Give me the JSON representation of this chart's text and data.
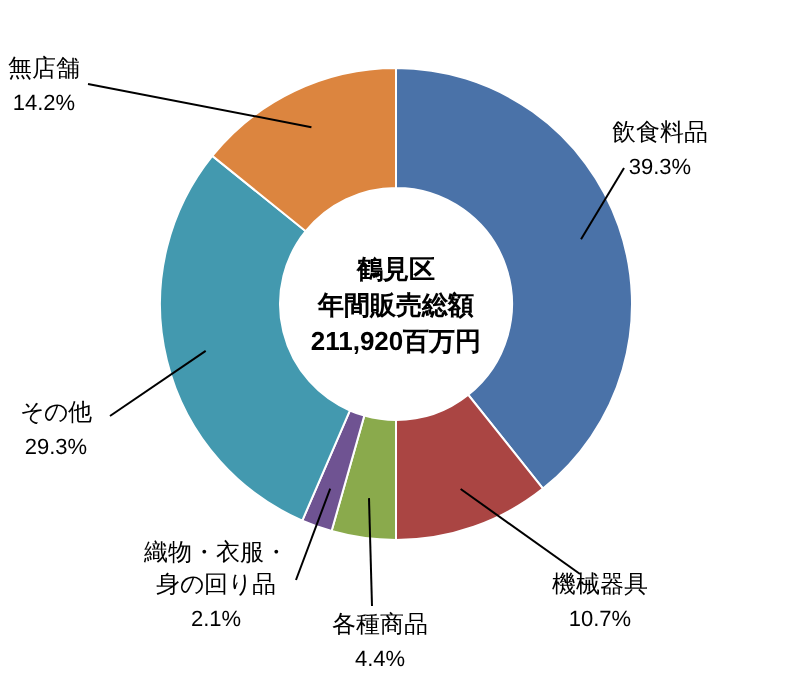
{
  "chart_data": {
    "type": "donut",
    "title": "鶴見区",
    "subtitle": "年間販売総額",
    "annotations": [
      "211,920百万円"
    ],
    "categories": [
      "飲食料品",
      "機械器具",
      "各種商品",
      "織物・衣服・身の回り品",
      "その他",
      "無店舗"
    ],
    "values": [
      39.3,
      10.7,
      4.4,
      2.1,
      29.3,
      14.2
    ],
    "colors": [
      "#4a72a8",
      "#aa4543",
      "#8aaa4c",
      "#6f5392",
      "#4399af",
      "#dc853f"
    ],
    "value_labels": [
      "39.3%",
      "10.7%",
      "4.4%",
      "2.1%",
      "29.3%",
      "14.2%"
    ]
  }
}
